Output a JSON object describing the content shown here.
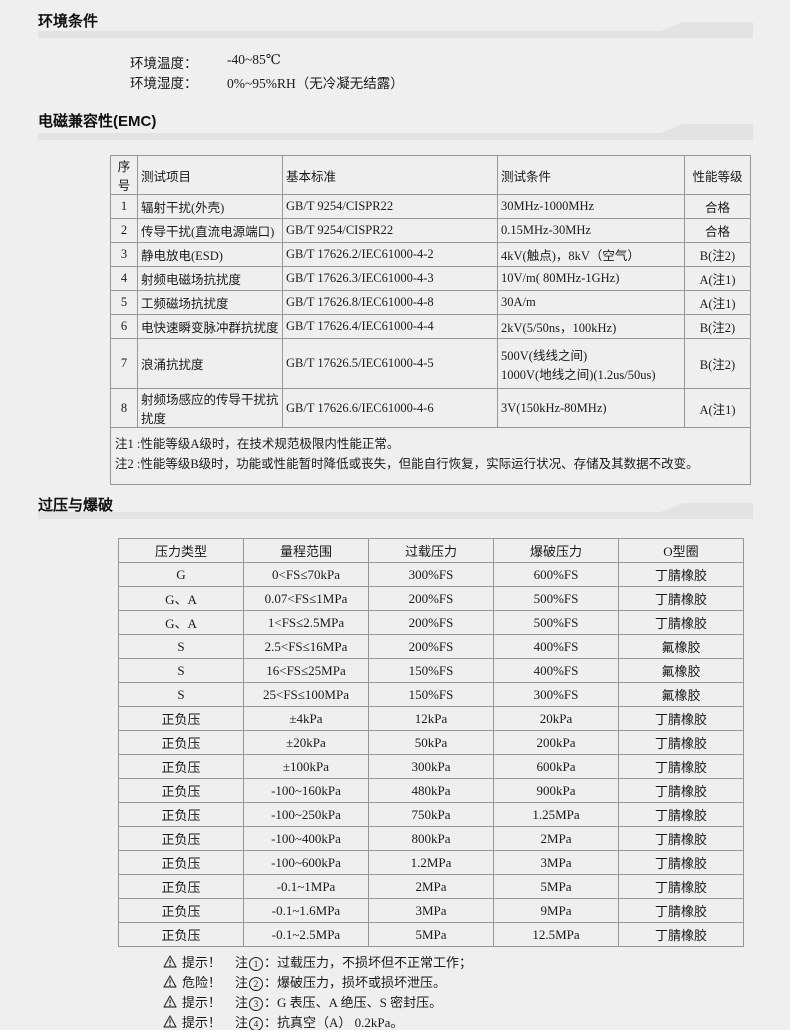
{
  "page": {
    "bg": "#efefef",
    "band_color": "#e3e3e3",
    "border_color": "#979797",
    "text_color": "#1a1a1a",
    "bottom_strip_color": "#ffffff"
  },
  "env": {
    "title": "环境条件",
    "rows": [
      {
        "label": "环境温度：",
        "value": "-40~85℃"
      },
      {
        "label": "环境湿度：",
        "value": "0%~95%RH（无冷凝无结露）"
      }
    ]
  },
  "emc": {
    "title": "电磁兼容性(EMC)",
    "table": {
      "headers": [
        "序号",
        "测试项目",
        "基本标准",
        "测试条件",
        "性能等级"
      ],
      "rows": [
        [
          "1",
          "辐射干扰(外壳)",
          "GB/T 9254/CISPR22",
          "30MHz-1000MHz",
          "合格"
        ],
        [
          "2",
          "传导干扰(直流电源端口)",
          "GB/T 9254/CISPR22",
          "0.15MHz-30MHz",
          "合格"
        ],
        [
          "3",
          "静电放电(ESD)",
          "GB/T 17626.2/IEC61000-4-2",
          "4kV(触点)，8kV（空气）",
          "B(注2)"
        ],
        [
          "4",
          "射频电磁场抗扰度",
          "GB/T 17626.3/IEC61000-4-3",
          "10V/m( 80MHz-1GHz)",
          "A(注1)"
        ],
        [
          "5",
          "工频磁场抗扰度",
          "GB/T 17626.8/IEC61000-4-8",
          "30A/m",
          "A(注1)"
        ],
        [
          "6",
          "电快速瞬变脉冲群抗扰度",
          "GB/T 17626.4/IEC61000-4-4",
          "2kV(5/50ns，100kHz)",
          "B(注2)"
        ],
        [
          "7",
          "浪涌抗扰度",
          "GB/T 17626.5/IEC61000-4-5",
          "500V(线线之间)\n1000V(地线之间)(1.2us/50us)",
          "B(注2)"
        ],
        [
          "8",
          "射频场感应的传导干扰抗扰度",
          "GB/T 17626.6/IEC61000-4-6",
          "3V(150kHz-80MHz)",
          "A(注1)"
        ]
      ],
      "tall_row_index": 6,
      "notes": [
        "注1 :性能等级A级时，在技术规范极限内性能正常。",
        "注2 :性能等级B级时，功能或性能暂时降低或丧失，但能自行恢复，实际运行状况、存储及其数据不改变。"
      ]
    }
  },
  "pressure": {
    "title": "过压与爆破",
    "table": {
      "headers": [
        "压力类型",
        "量程范围",
        "过载压力",
        "爆破压力",
        "O型圈"
      ],
      "rows": [
        [
          "G",
          "0<FS≤70kPa",
          "300%FS",
          "600%FS",
          "丁腈橡胶"
        ],
        [
          "G、A",
          "0.07<FS≤1MPa",
          "200%FS",
          "500%FS",
          "丁腈橡胶"
        ],
        [
          "G、A",
          "1<FS≤2.5MPa",
          "200%FS",
          "500%FS",
          "丁腈橡胶"
        ],
        [
          "S",
          "2.5<FS≤16MPa",
          "200%FS",
          "400%FS",
          "氟橡胶"
        ],
        [
          "S",
          "16<FS≤25MPa",
          "150%FS",
          "400%FS",
          "氟橡胶"
        ],
        [
          "S",
          "25<FS≤100MPa",
          "150%FS",
          "300%FS",
          "氟橡胶"
        ],
        [
          "正负压",
          "±4kPa",
          "12kPa",
          "20kPa",
          "丁腈橡胶"
        ],
        [
          "正负压",
          "±20kPa",
          "50kPa",
          "200kPa",
          "丁腈橡胶"
        ],
        [
          "正负压",
          "±100kPa",
          "300kPa",
          "600kPa",
          "丁腈橡胶"
        ],
        [
          "正负压",
          "-100~160kPa",
          "480kPa",
          "900kPa",
          "丁腈橡胶"
        ],
        [
          "正负压",
          "-100~250kPa",
          "750kPa",
          "1.25MPa",
          "丁腈橡胶"
        ],
        [
          "正负压",
          "-100~400kPa",
          "800kPa",
          "2MPa",
          "丁腈橡胶"
        ],
        [
          "正负压",
          "-100~600kPa",
          "1.2MPa",
          "3MPa",
          "丁腈橡胶"
        ],
        [
          "正负压",
          "-0.1~1MPa",
          "2MPa",
          "5MPa",
          "丁腈橡胶"
        ],
        [
          "正负压",
          "-0.1~1.6MPa",
          "3MPa",
          "9MPa",
          "丁腈橡胶"
        ],
        [
          "正负压",
          "-0.1~2.5MPa",
          "5MPa",
          "12.5MPa",
          "丁腈橡胶"
        ]
      ]
    },
    "warnings": [
      {
        "kind": "提示！",
        "note_prefix": "注",
        "note_num": "1",
        "note_suffix": "：",
        "text": "过载压力，不损坏但不正常工作；"
      },
      {
        "kind": "危险！",
        "note_prefix": "注",
        "note_num": "2",
        "note_suffix": "：",
        "text": "爆破压力，损坏或损坏泄压。"
      },
      {
        "kind": "提示！",
        "note_prefix": "注",
        "note_num": "3",
        "note_suffix": "：",
        "text": "G 表压、A 绝压、S 密封压。"
      },
      {
        "kind": "提示！",
        "note_prefix": "注",
        "note_num": "4",
        "note_suffix": "：",
        "text": "抗真空（A） 0.2kPa。"
      }
    ]
  }
}
